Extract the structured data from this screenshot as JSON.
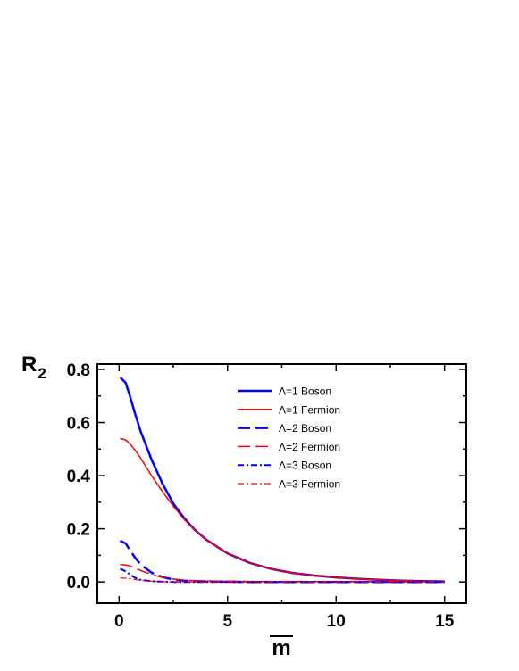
{
  "chart_data": {
    "type": "line",
    "xlabel": "m",
    "ylabel": "R",
    "ylabel_subscript": "2",
    "xlim": [
      -1,
      16
    ],
    "ylim": [
      -0.08,
      0.82
    ],
    "xticks": [
      0,
      5,
      10,
      15
    ],
    "xtick_labels": [
      "0",
      "5",
      "10",
      "15"
    ],
    "yticks": [
      0.0,
      0.2,
      0.4,
      0.6,
      0.8
    ],
    "ytick_labels": [
      "0.0",
      "0.2",
      "0.4",
      "0.6",
      "0.8"
    ],
    "grid": false,
    "legend_position": "top-right",
    "x": [
      0.05,
      0.3,
      0.5,
      0.75,
      1,
      1.5,
      2,
      2.5,
      3,
      3.5,
      4,
      5,
      6,
      7,
      8,
      9,
      10,
      11,
      12,
      13,
      14,
      15
    ],
    "series": [
      {
        "name": "Λ=1  Boson",
        "color": "#0000ff",
        "dash": "solid",
        "width": 2.5,
        "values": [
          0.77,
          0.75,
          0.7,
          0.63,
          0.565,
          0.46,
          0.37,
          0.295,
          0.24,
          0.195,
          0.16,
          0.107,
          0.072,
          0.049,
          0.034,
          0.024,
          0.017,
          0.012,
          0.008,
          0.005,
          0.003,
          0.002
        ]
      },
      {
        "name": "Λ=1  Fermion",
        "color": "#ff0000",
        "dash": "solid",
        "width": 1.5,
        "values": [
          0.54,
          0.535,
          0.52,
          0.495,
          0.465,
          0.4,
          0.34,
          0.285,
          0.235,
          0.195,
          0.16,
          0.107,
          0.072,
          0.049,
          0.034,
          0.024,
          0.017,
          0.012,
          0.008,
          0.005,
          0.003,
          0.002
        ]
      },
      {
        "name": "Λ=2  Boson",
        "color": "#0000ff",
        "dash": "long-dash",
        "width": 2.5,
        "values": [
          0.155,
          0.145,
          0.12,
          0.09,
          0.065,
          0.035,
          0.018,
          0.009,
          0.005,
          0.003,
          0.002,
          0.001,
          0,
          0,
          0,
          0,
          0,
          0,
          0,
          0,
          0,
          0
        ]
      },
      {
        "name": "Λ=2  Fermion",
        "color": "#ff0000",
        "dash": "long-dash",
        "width": 1.5,
        "values": [
          0.065,
          0.064,
          0.06,
          0.052,
          0.043,
          0.028,
          0.017,
          0.011,
          0.007,
          0.005,
          0.004,
          0.003,
          0.002,
          0.002,
          0.002,
          0.002,
          0.002,
          0.002,
          0.001,
          0.001,
          0.001,
          0.001
        ]
      },
      {
        "name": "Λ=3  Boson",
        "color": "#0000ff",
        "dash": "dash-dot",
        "width": 2,
        "values": [
          0.05,
          0.04,
          0.028,
          0.015,
          0.008,
          0.003,
          0.001,
          0,
          0,
          0,
          0,
          0,
          0,
          0,
          0,
          0,
          0,
          0,
          0,
          0,
          0,
          0
        ]
      },
      {
        "name": "Λ=3  Fermion",
        "color": "#ff0000",
        "dash": "dash-dot",
        "width": 1.2,
        "values": [
          0.015,
          0.014,
          0.012,
          0.009,
          0.006,
          0.003,
          0.001,
          0,
          0,
          0,
          0,
          0,
          0,
          0,
          0,
          0,
          0,
          0,
          0,
          0,
          0,
          0
        ]
      }
    ]
  }
}
